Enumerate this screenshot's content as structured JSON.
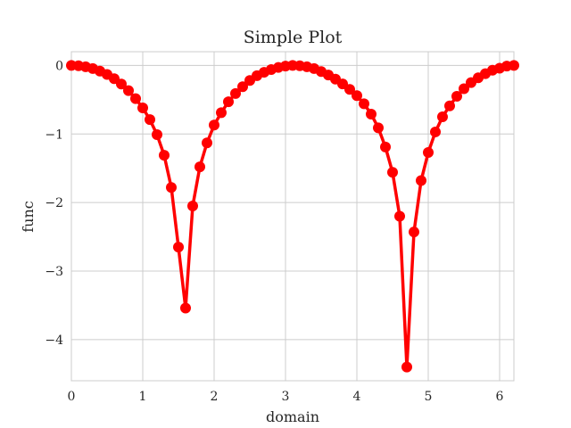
{
  "chart_data": {
    "type": "line",
    "title": "Simple Plot",
    "xlabel": "domain",
    "ylabel": "func",
    "xlim": [
      0,
      6.2
    ],
    "ylim": [
      -4.6,
      0.2
    ],
    "grid": true,
    "x_ticks": [
      {
        "value": 0,
        "label": "0"
      },
      {
        "value": 1,
        "label": "1"
      },
      {
        "value": 2,
        "label": "2"
      },
      {
        "value": 3,
        "label": "3"
      },
      {
        "value": 4,
        "label": "4"
      },
      {
        "value": 5,
        "label": "5"
      },
      {
        "value": 6,
        "label": "6"
      }
    ],
    "y_ticks": [
      {
        "value": 0,
        "label": "0"
      },
      {
        "value": -1,
        "label": "−1"
      },
      {
        "value": -2,
        "label": "−2"
      },
      {
        "value": -3,
        "label": "−3"
      },
      {
        "value": -4,
        "label": "−4"
      }
    ],
    "series": [
      {
        "color": "#ff0000",
        "marker": "circle",
        "x": [
          0.0,
          0.1,
          0.2,
          0.3,
          0.4,
          0.5,
          0.6,
          0.7,
          0.8,
          0.9,
          1.0,
          1.1,
          1.2,
          1.3,
          1.4,
          1.5,
          1.6,
          1.7,
          1.8,
          1.9,
          2.0,
          2.1,
          2.2,
          2.3,
          2.4,
          2.5,
          2.6,
          2.7,
          2.8,
          2.9,
          3.0,
          3.1,
          3.2,
          3.3,
          3.4,
          3.5,
          3.6,
          3.7,
          3.8,
          3.9,
          4.0,
          4.1,
          4.2,
          4.3,
          4.4,
          4.5,
          4.6,
          4.7,
          4.8,
          4.9,
          5.0,
          5.1,
          5.2,
          5.3,
          5.4,
          5.5,
          5.6,
          5.7,
          5.8,
          5.9,
          6.0,
          6.1,
          6.2
        ],
        "y": [
          0.0,
          -0.005,
          -0.02,
          -0.046,
          -0.083,
          -0.132,
          -0.194,
          -0.272,
          -0.368,
          -0.485,
          -0.62,
          -0.79,
          -1.01,
          -1.31,
          -1.78,
          -2.65,
          -3.54,
          -2.05,
          -1.48,
          -1.13,
          -0.87,
          -0.69,
          -0.53,
          -0.41,
          -0.31,
          -0.22,
          -0.15,
          -0.1,
          -0.06,
          -0.03,
          -0.01,
          0.0,
          -0.005,
          -0.02,
          -0.046,
          -0.09,
          -0.14,
          -0.2,
          -0.27,
          -0.35,
          -0.44,
          -0.56,
          -0.71,
          -0.91,
          -1.19,
          -1.56,
          -2.2,
          -4.4,
          -2.43,
          -1.68,
          -1.27,
          -0.97,
          -0.75,
          -0.59,
          -0.45,
          -0.34,
          -0.25,
          -0.18,
          -0.12,
          -0.07,
          -0.04,
          -0.01,
          0.0
        ]
      }
    ]
  }
}
